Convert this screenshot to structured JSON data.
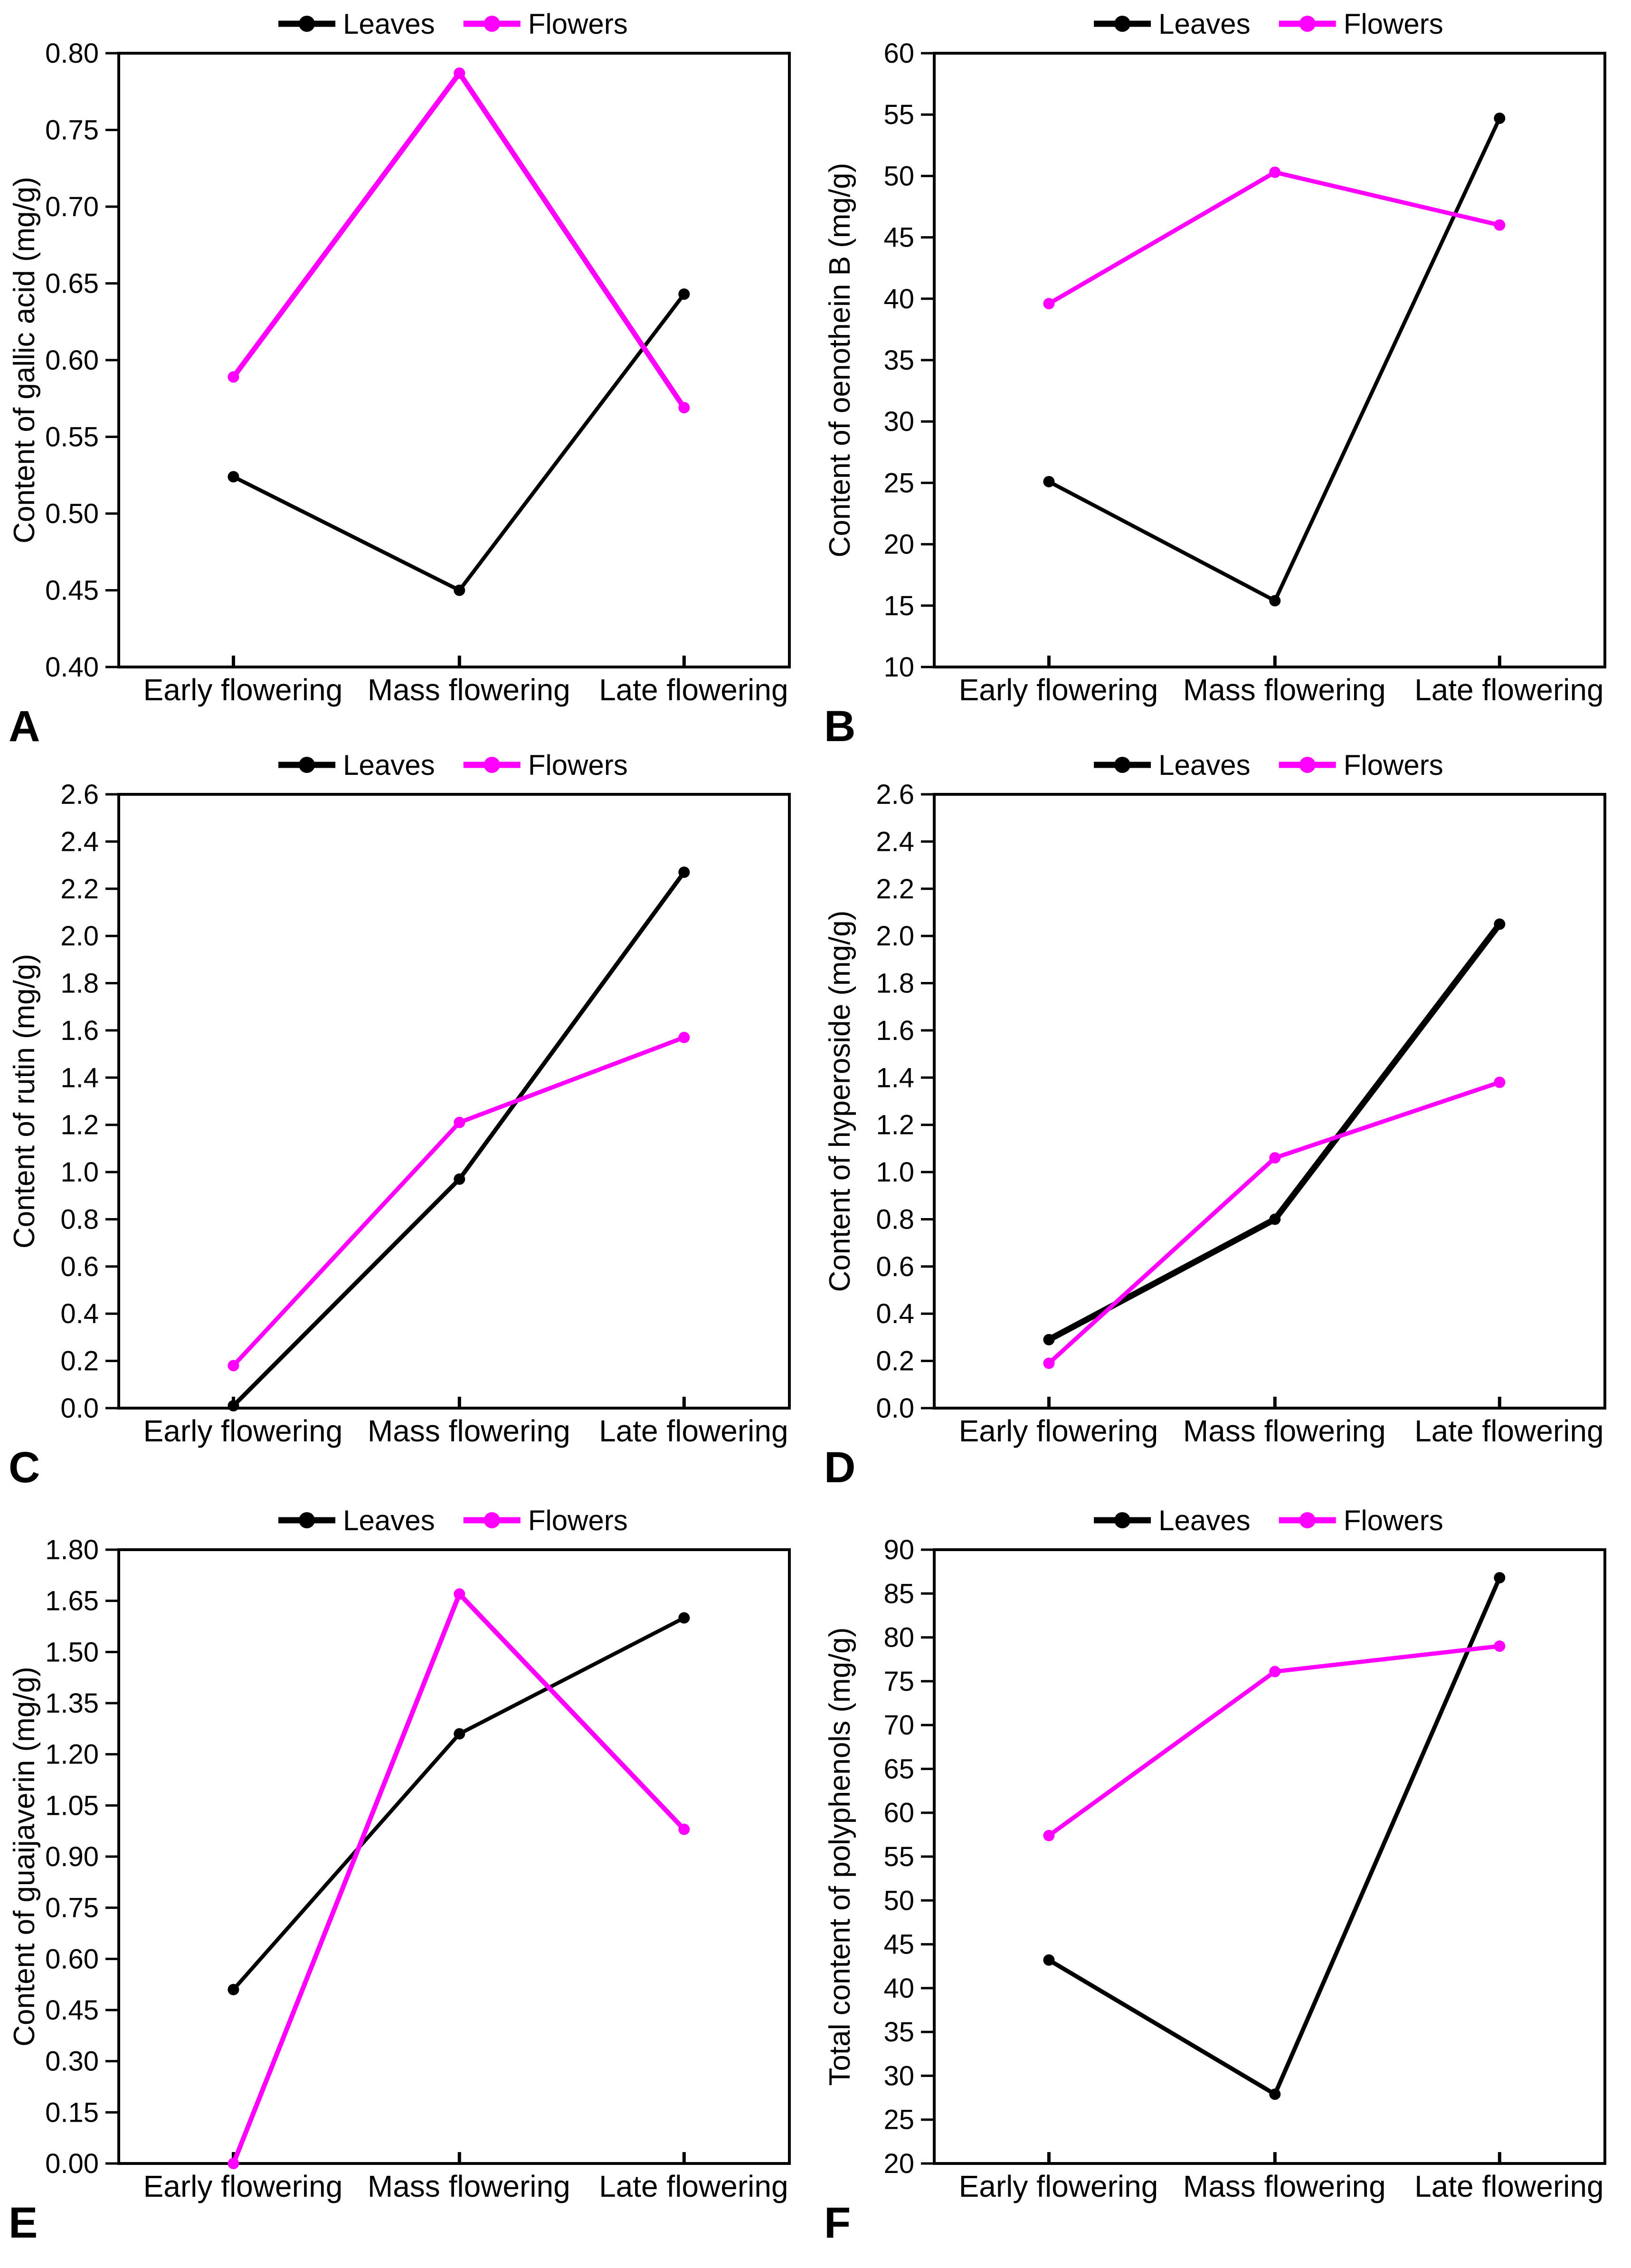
{
  "figure": {
    "categories": [
      "Early flowering",
      "Mass flowering",
      "Late flowering"
    ],
    "legend": {
      "items": [
        {
          "label": "Leaves",
          "color": "#000000"
        },
        {
          "label": "Flowers",
          "color": "#FF00FF"
        }
      ]
    },
    "colors": {
      "leaves": "#000000",
      "flowers": "#FF00FF",
      "axis": "#000000",
      "background": "#ffffff"
    }
  },
  "chart_data": [
    {
      "type": "line",
      "letter": "A",
      "title": "",
      "xlabel": "",
      "ylabel": "Content of gallic acid (mg/g)",
      "ylim": [
        0.4,
        0.8
      ],
      "ystep": 0.05,
      "ydecimals": 2,
      "grid": false,
      "legend_position": "top",
      "categories": [
        "Early flowering",
        "Mass flowering",
        "Late flowering"
      ],
      "series": [
        {
          "name": "Leaves",
          "color": "#000000",
          "line_width": 8,
          "values": [
            0.524,
            0.45,
            0.643
          ]
        },
        {
          "name": "Flowers",
          "color": "#FF00FF",
          "line_width": 11,
          "values": [
            0.589,
            0.787,
            0.569
          ]
        }
      ]
    },
    {
      "type": "line",
      "letter": "B",
      "title": "",
      "xlabel": "",
      "ylabel": "Content of oenothein B (mg/g)",
      "ylim": [
        10,
        60
      ],
      "ystep": 5,
      "ydecimals": 0,
      "grid": false,
      "legend_position": "top",
      "categories": [
        "Early flowering",
        "Mass flowering",
        "Late flowering"
      ],
      "series": [
        {
          "name": "Leaves",
          "color": "#000000",
          "line_width": 8,
          "values": [
            25.1,
            15.4,
            54.7
          ]
        },
        {
          "name": "Flowers",
          "color": "#FF00FF",
          "line_width": 9,
          "values": [
            39.6,
            50.3,
            46.0
          ]
        }
      ]
    },
    {
      "type": "line",
      "letter": "C",
      "title": "",
      "xlabel": "",
      "ylabel": "Content of rutin (mg/g)",
      "ylim": [
        0.0,
        2.6
      ],
      "ystep": 0.2,
      "ydecimals": 1,
      "grid": false,
      "legend_position": "top",
      "categories": [
        "Early flowering",
        "Mass flowering",
        "Late flowering"
      ],
      "series": [
        {
          "name": "Leaves",
          "color": "#000000",
          "line_width": 9,
          "values": [
            0.01,
            0.97,
            2.27
          ]
        },
        {
          "name": "Flowers",
          "color": "#FF00FF",
          "line_width": 9,
          "values": [
            0.18,
            1.21,
            1.57
          ]
        }
      ]
    },
    {
      "type": "line",
      "letter": "D",
      "title": "",
      "xlabel": "",
      "ylabel": "Content of hyperoside (mg/g)",
      "ylim": [
        0.0,
        2.6
      ],
      "ystep": 0.2,
      "ydecimals": 1,
      "grid": false,
      "legend_position": "top",
      "categories": [
        "Early flowering",
        "Mass flowering",
        "Late flowering"
      ],
      "series": [
        {
          "name": "Leaves",
          "color": "#000000",
          "line_width": 13,
          "values": [
            0.29,
            0.8,
            2.05
          ]
        },
        {
          "name": "Flowers",
          "color": "#FF00FF",
          "line_width": 9,
          "values": [
            0.19,
            1.06,
            1.38
          ]
        }
      ]
    },
    {
      "type": "line",
      "letter": "E",
      "title": "",
      "xlabel": "",
      "ylabel": "Content of guaijaverin (mg/g)",
      "ylim": [
        0.0,
        1.8
      ],
      "ystep": 0.15,
      "ydecimals": 2,
      "grid": false,
      "legend_position": "top",
      "categories": [
        "Early flowering",
        "Mass flowering",
        "Late flowering"
      ],
      "series": [
        {
          "name": "Leaves",
          "color": "#000000",
          "line_width": 8,
          "values": [
            0.51,
            1.26,
            1.6
          ]
        },
        {
          "name": "Flowers",
          "color": "#FF00FF",
          "line_width": 10,
          "values": [
            0.0,
            1.67,
            0.98
          ]
        }
      ]
    },
    {
      "type": "line",
      "letter": "F",
      "title": "",
      "xlabel": "",
      "ylabel": "Total content of polyphenols (mg/g)",
      "ylim": [
        20,
        90
      ],
      "ystep": 5,
      "ydecimals": 0,
      "grid": false,
      "legend_position": "top",
      "categories": [
        "Early flowering",
        "Mass flowering",
        "Late flowering"
      ],
      "series": [
        {
          "name": "Leaves",
          "color": "#000000",
          "line_width": 9,
          "values": [
            43.2,
            27.9,
            86.8
          ]
        },
        {
          "name": "Flowers",
          "color": "#FF00FF",
          "line_width": 9,
          "values": [
            57.4,
            76.1,
            79.0
          ]
        }
      ]
    }
  ]
}
